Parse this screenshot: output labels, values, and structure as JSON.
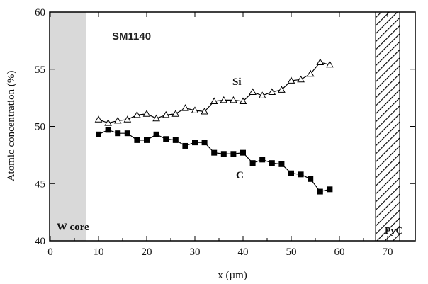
{
  "chart_data": {
    "type": "line",
    "title": "",
    "sample_label": "SM1140",
    "xlabel": "x (µm)",
    "ylabel": "Atomic concentration (%)",
    "xlim": [
      0,
      74
    ],
    "ylim": [
      40,
      60
    ],
    "xticks": [
      0,
      10,
      20,
      30,
      40,
      50,
      60,
      70
    ],
    "yticks": [
      40,
      45,
      50,
      55,
      60
    ],
    "grid": false,
    "regions": [
      {
        "label": "W core",
        "x_range": [
          0,
          7.5
        ],
        "style": "gray-fill"
      },
      {
        "label": "PyC",
        "x_range": [
          67.5,
          72.5
        ],
        "style": "hatched"
      }
    ],
    "series": [
      {
        "name": "Si",
        "marker": "open-triangle",
        "x": [
          10,
          12,
          14,
          16,
          18,
          20,
          22,
          24,
          26,
          28,
          30,
          32,
          34,
          36,
          38,
          40,
          42,
          44,
          46,
          48,
          50,
          52,
          54,
          56,
          58
        ],
        "y": [
          50.6,
          50.3,
          50.5,
          50.6,
          51.0,
          51.1,
          50.7,
          51.0,
          51.1,
          51.6,
          51.4,
          51.3,
          52.2,
          52.3,
          52.3,
          52.2,
          53.0,
          52.7,
          53.0,
          53.2,
          54.0,
          54.1,
          54.6,
          55.6,
          55.4
        ]
      },
      {
        "name": "C",
        "marker": "filled-square",
        "x": [
          10,
          12,
          14,
          16,
          18,
          20,
          22,
          24,
          26,
          28,
          30,
          32,
          34,
          36,
          38,
          40,
          42,
          44,
          46,
          48,
          50,
          52,
          54,
          56,
          58
        ],
        "y": [
          49.3,
          49.7,
          49.4,
          49.4,
          48.8,
          48.8,
          49.3,
          48.9,
          48.8,
          48.3,
          48.6,
          48.6,
          47.7,
          47.6,
          47.6,
          47.7,
          46.8,
          47.1,
          46.8,
          46.7,
          45.9,
          45.8,
          45.4,
          44.3,
          44.5
        ]
      }
    ],
    "colors": {
      "line": "#000000",
      "core_fill": "#d9d9d9",
      "background": "#ffffff"
    }
  }
}
